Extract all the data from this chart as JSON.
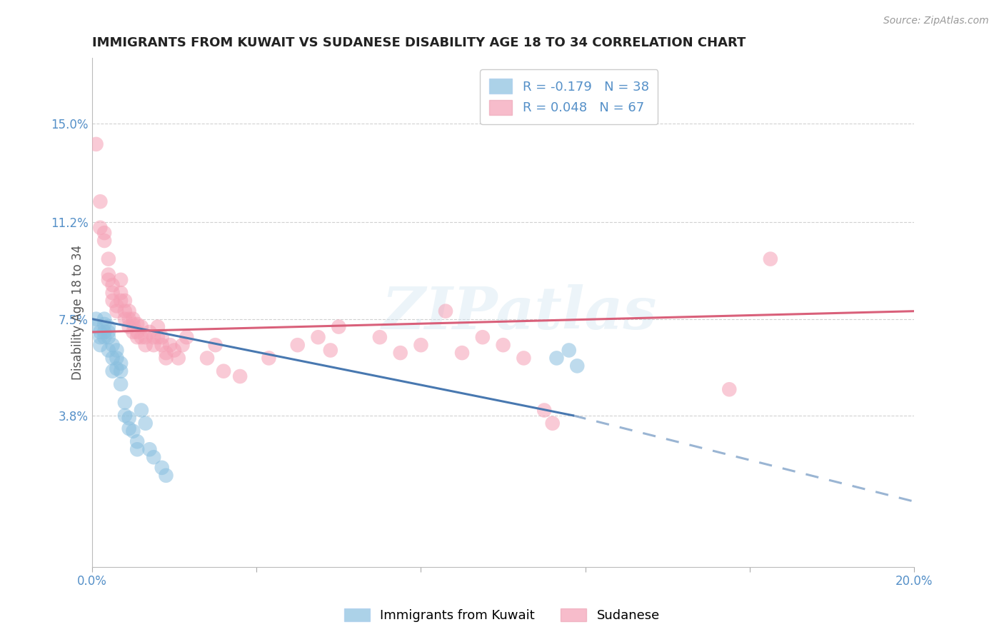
{
  "title": "IMMIGRANTS FROM KUWAIT VS SUDANESE DISABILITY AGE 18 TO 34 CORRELATION CHART",
  "source": "Source: ZipAtlas.com",
  "ylabel": "Disability Age 18 to 34",
  "xlim": [
    0.0,
    0.2
  ],
  "ylim": [
    -0.02,
    0.175
  ],
  "ytick_positions": [
    0.038,
    0.075,
    0.112,
    0.15
  ],
  "yticklabels": [
    "3.8%",
    "7.5%",
    "11.2%",
    "15.0%"
  ],
  "watermark": "ZIPatlas",
  "legend_label1": "Immigrants from Kuwait",
  "legend_label2": "Sudanese",
  "kuwait_R": -0.179,
  "kuwait_N": 38,
  "sudanese_R": 0.048,
  "sudanese_N": 67,
  "kuwait_color": "#89bfdf",
  "sudanese_color": "#f5a0b5",
  "kuwait_line_color": "#4878b0",
  "sudanese_line_color": "#d9607a",
  "background_color": "#ffffff",
  "grid_color": "#cccccc",
  "kuwait_x": [
    0.001,
    0.001,
    0.002,
    0.002,
    0.002,
    0.003,
    0.003,
    0.003,
    0.003,
    0.004,
    0.004,
    0.004,
    0.004,
    0.005,
    0.005,
    0.005,
    0.006,
    0.006,
    0.006,
    0.007,
    0.007,
    0.007,
    0.008,
    0.008,
    0.009,
    0.009,
    0.01,
    0.011,
    0.011,
    0.012,
    0.013,
    0.014,
    0.015,
    0.017,
    0.018,
    0.113,
    0.116,
    0.118
  ],
  "kuwait_y": [
    0.072,
    0.075,
    0.07,
    0.068,
    0.065,
    0.075,
    0.073,
    0.07,
    0.068,
    0.072,
    0.07,
    0.068,
    0.063,
    0.065,
    0.06,
    0.055,
    0.063,
    0.06,
    0.056,
    0.058,
    0.055,
    0.05,
    0.043,
    0.038,
    0.037,
    0.033,
    0.032,
    0.028,
    0.025,
    0.04,
    0.035,
    0.025,
    0.022,
    0.018,
    0.015,
    0.06,
    0.063,
    0.057
  ],
  "sudanese_x": [
    0.001,
    0.002,
    0.002,
    0.003,
    0.003,
    0.004,
    0.004,
    0.004,
    0.005,
    0.005,
    0.005,
    0.006,
    0.006,
    0.007,
    0.007,
    0.007,
    0.008,
    0.008,
    0.008,
    0.009,
    0.009,
    0.009,
    0.01,
    0.01,
    0.01,
    0.011,
    0.011,
    0.011,
    0.012,
    0.012,
    0.013,
    0.013,
    0.014,
    0.015,
    0.015,
    0.016,
    0.016,
    0.017,
    0.017,
    0.018,
    0.018,
    0.019,
    0.02,
    0.021,
    0.022,
    0.023,
    0.028,
    0.03,
    0.032,
    0.036,
    0.043,
    0.05,
    0.055,
    0.058,
    0.06,
    0.07,
    0.075,
    0.08,
    0.086,
    0.09,
    0.095,
    0.1,
    0.105,
    0.11,
    0.112,
    0.155,
    0.165
  ],
  "sudanese_y": [
    0.142,
    0.11,
    0.12,
    0.105,
    0.108,
    0.098,
    0.092,
    0.09,
    0.088,
    0.085,
    0.082,
    0.078,
    0.08,
    0.09,
    0.085,
    0.082,
    0.078,
    0.082,
    0.075,
    0.078,
    0.075,
    0.072,
    0.075,
    0.073,
    0.07,
    0.073,
    0.07,
    0.068,
    0.072,
    0.068,
    0.068,
    0.065,
    0.07,
    0.065,
    0.068,
    0.072,
    0.068,
    0.065,
    0.068,
    0.06,
    0.062,
    0.065,
    0.063,
    0.06,
    0.065,
    0.068,
    0.06,
    0.065,
    0.055,
    0.053,
    0.06,
    0.065,
    0.068,
    0.063,
    0.072,
    0.068,
    0.062,
    0.065,
    0.078,
    0.062,
    0.068,
    0.065,
    0.06,
    0.04,
    0.035,
    0.048,
    0.098
  ]
}
